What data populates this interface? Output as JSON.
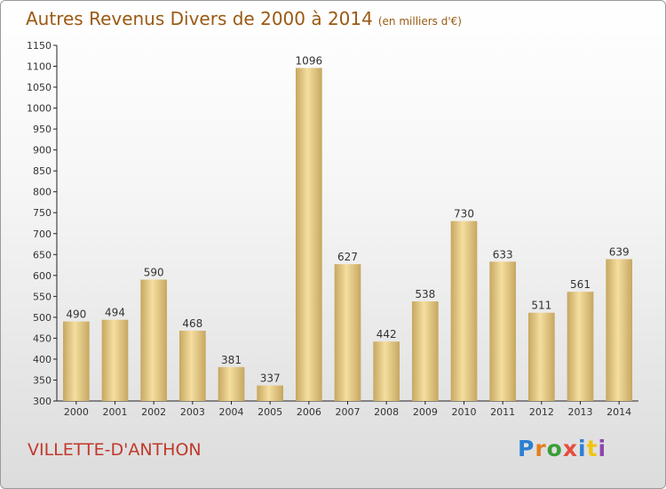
{
  "title": "Autres Revenus Divers de 2000 à 2014",
  "unit_note": "(en milliers d'€)",
  "commune": "VILLETTE-D'ANTHON",
  "logo": {
    "letters": [
      "P",
      "r",
      "o",
      "x",
      "i",
      "t",
      "i"
    ],
    "colors": [
      "#2b7fd1",
      "#e67e22",
      "#3a9d3a",
      "#e74c3c",
      "#2b7fd1",
      "#f1c40f",
      "#8e44ad"
    ]
  },
  "colors": {
    "bar_light": "#f5dea0",
    "bar_dark": "#c6a760",
    "title": "#9a5a12",
    "commune": "#c0392b"
  },
  "chart_data": {
    "type": "bar",
    "categories": [
      "2000",
      "2001",
      "2002",
      "2003",
      "2004",
      "2005",
      "2006",
      "2007",
      "2008",
      "2009",
      "2010",
      "2011",
      "2012",
      "2013",
      "2014"
    ],
    "values": [
      490,
      494,
      590,
      468,
      381,
      337,
      1096,
      627,
      442,
      538,
      730,
      633,
      511,
      561,
      639
    ],
    "ylim": [
      300,
      1150
    ],
    "yticks": [
      300,
      350,
      400,
      450,
      500,
      550,
      600,
      650,
      700,
      750,
      800,
      850,
      900,
      950,
      1000,
      1050,
      1100,
      1150
    ],
    "xlabel": "",
    "ylabel": "",
    "grid": false
  }
}
